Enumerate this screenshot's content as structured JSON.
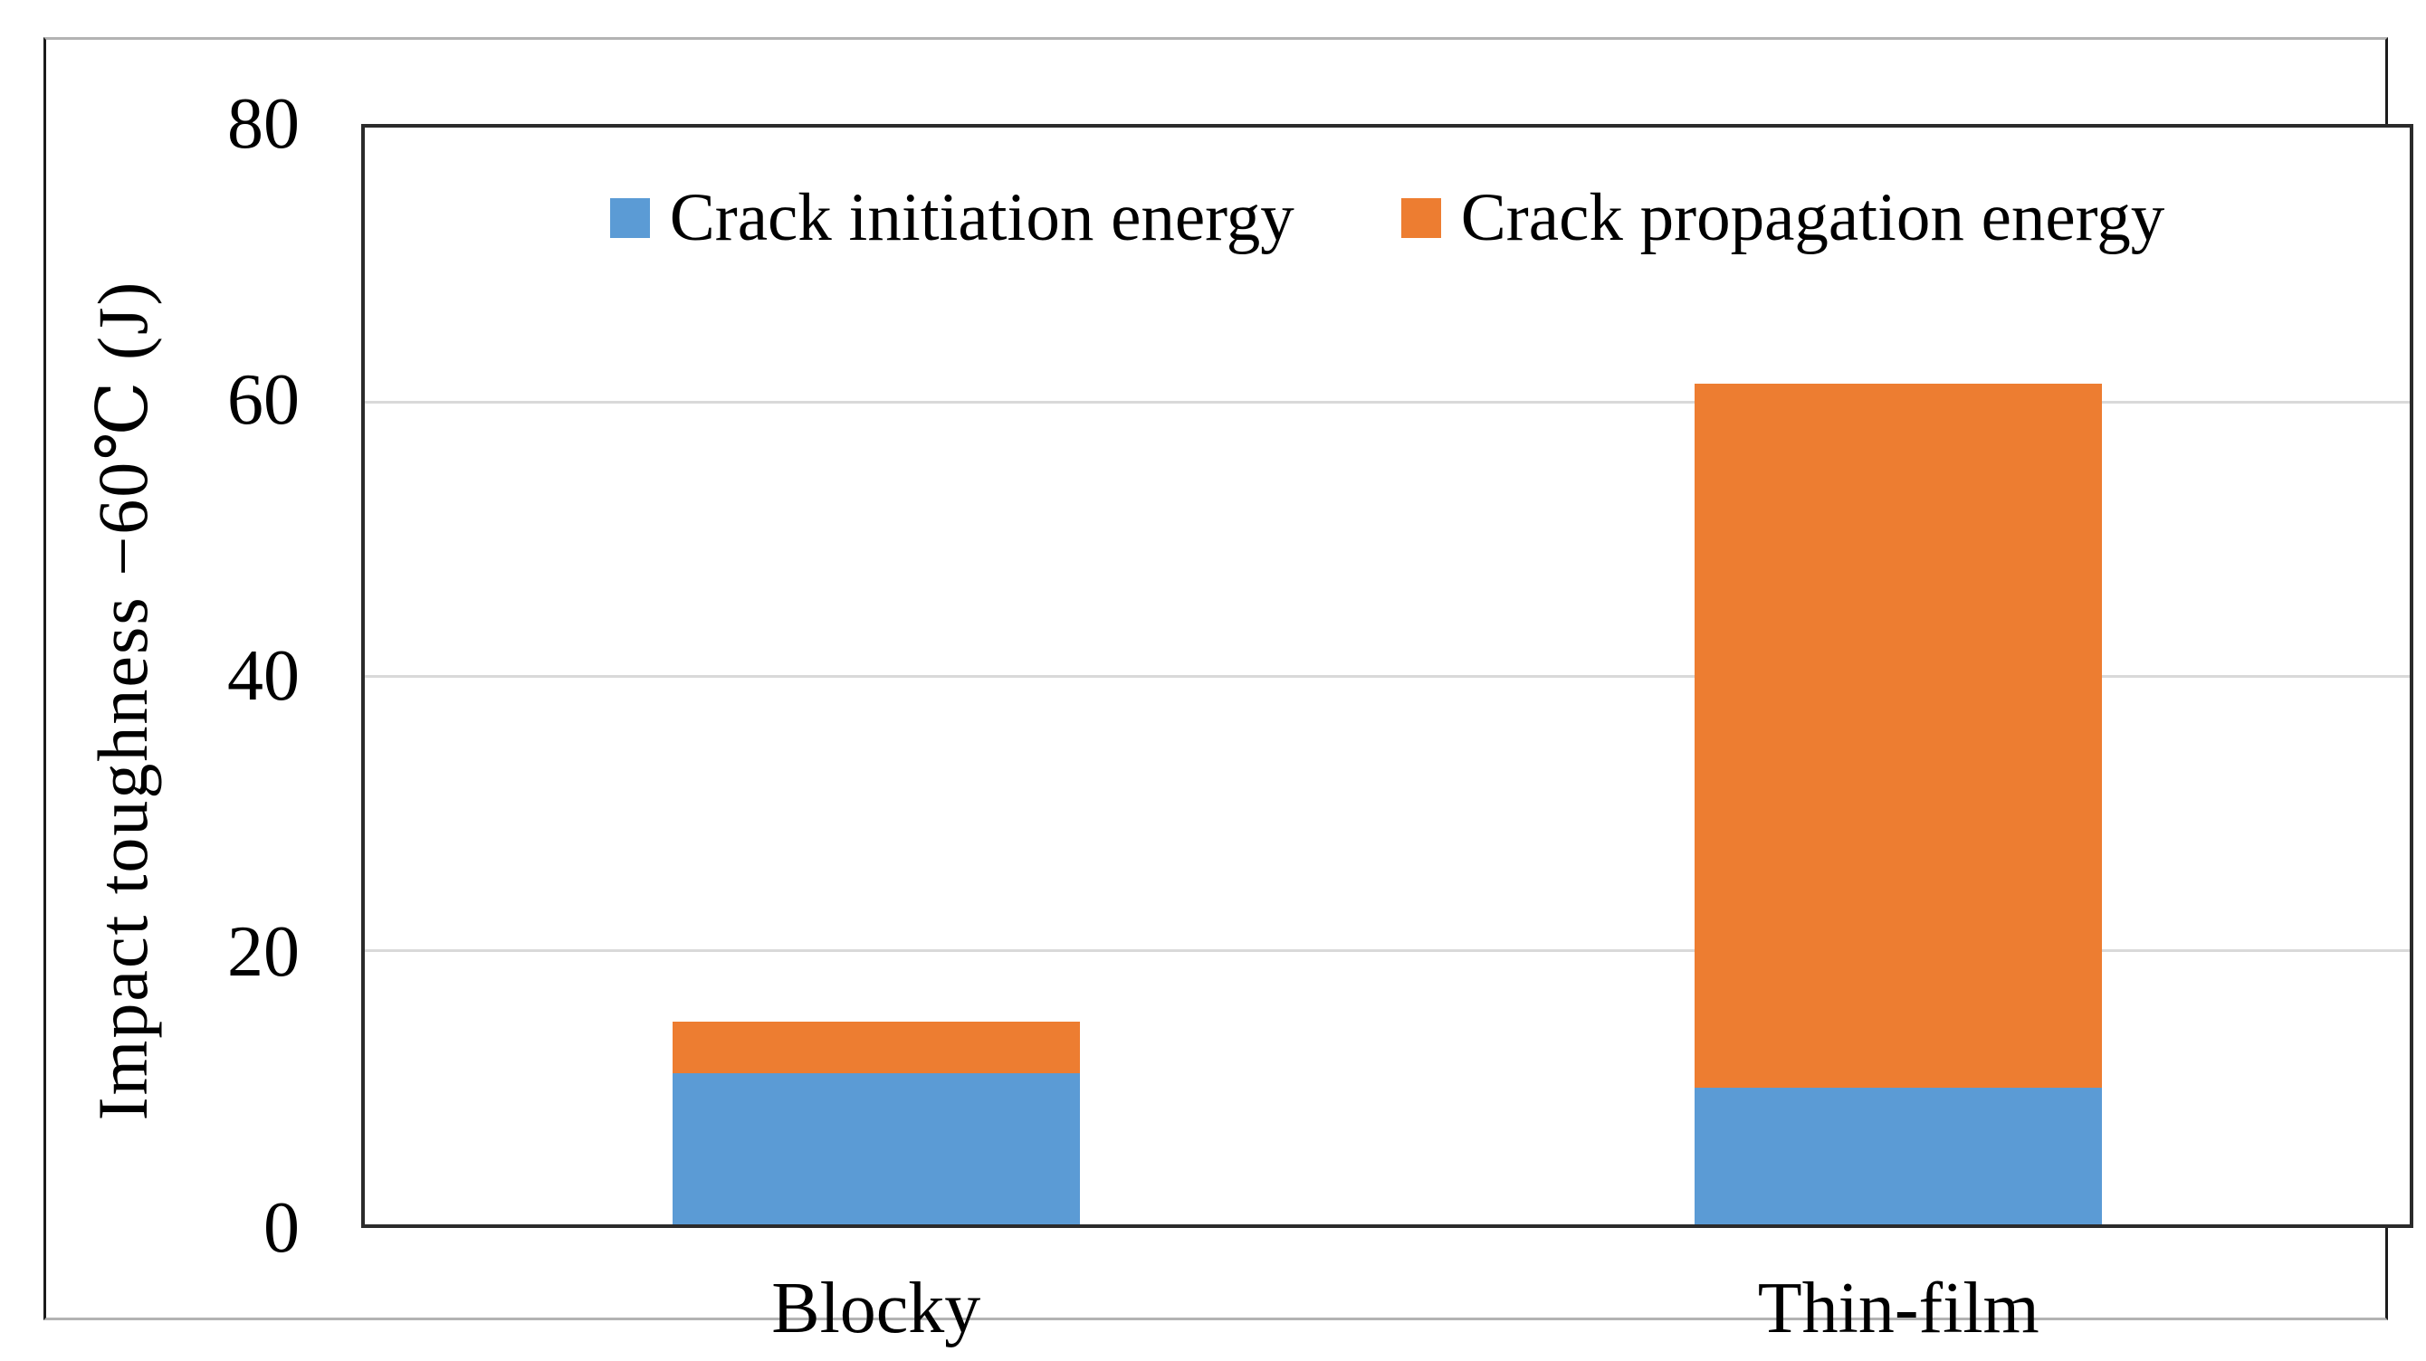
{
  "chart_data": {
    "type": "bar",
    "stacked": true,
    "title": "",
    "categories": [
      "Blocky",
      "Thin-film"
    ],
    "series": [
      {
        "name": "Crack initiation energy",
        "color": "#5B9BD5",
        "values": [
          11,
          10
        ]
      },
      {
        "name": "Crack propagation energy",
        "color": "#ED7D31",
        "values": [
          3.8,
          51.3
        ]
      }
    ],
    "stack_totals": [
      14.8,
      61.3
    ],
    "xlabel": "",
    "ylabel": "Impact toughness −60℃ (J)",
    "ylim": [
      0,
      80
    ],
    "yticks": [
      0,
      20,
      40,
      60,
      80
    ],
    "grid": "horizontal",
    "gridline_color": "#d9d9d9",
    "axis_frame_color": "#2b2b2b",
    "legend_position": "top-center-inside"
  }
}
